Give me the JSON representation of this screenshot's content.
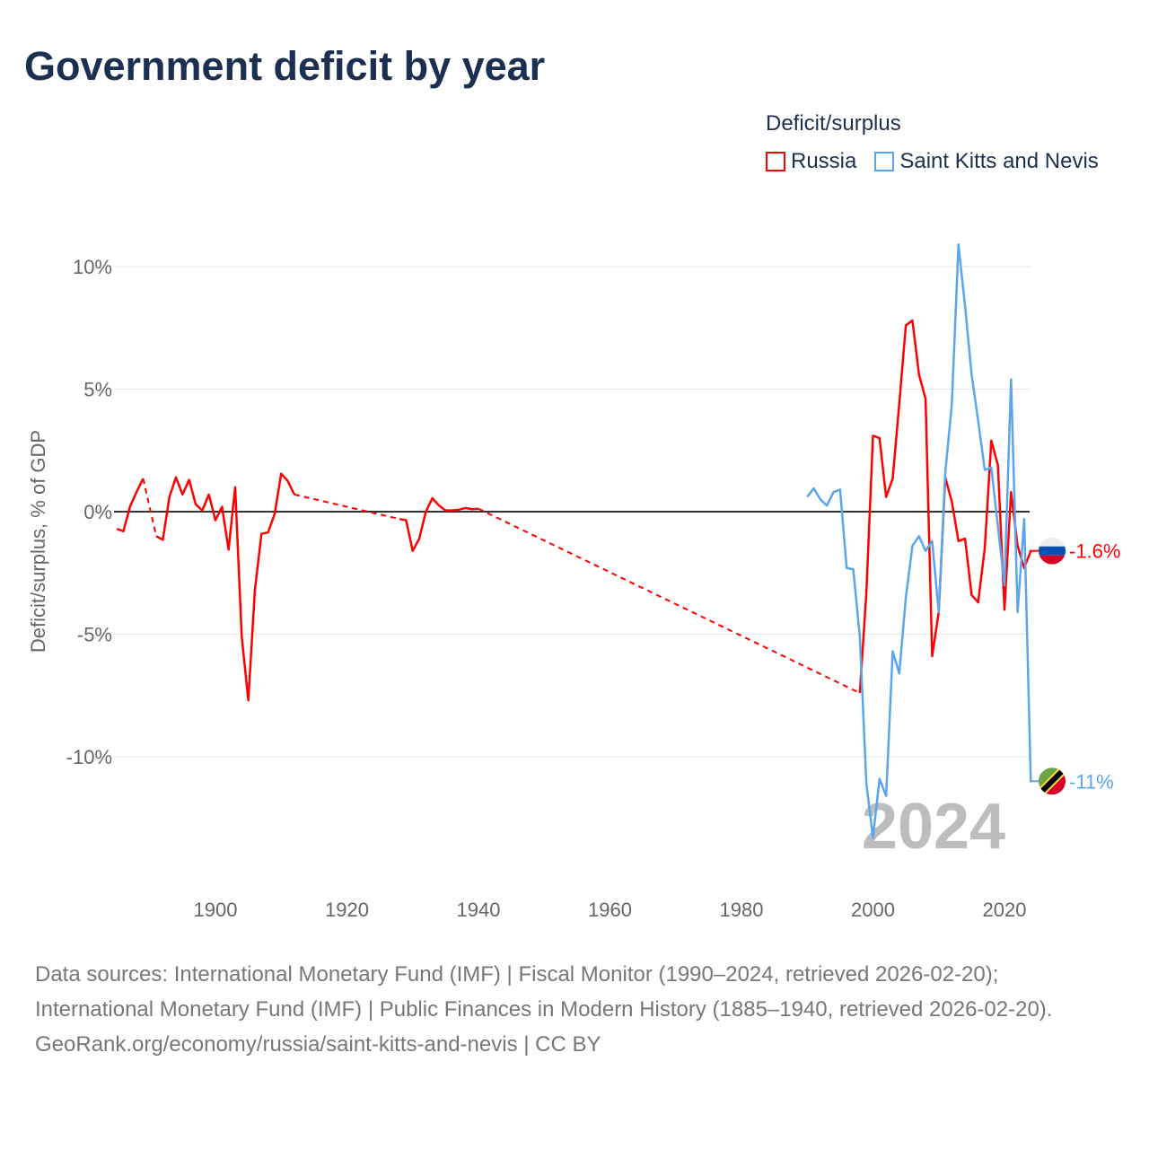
{
  "title": "Government deficit by year",
  "legend": {
    "title": "Deficit/surplus",
    "items": [
      {
        "name": "Russia",
        "color": "#ff0000"
      },
      {
        "name": "Saint Kitts and Nevis",
        "color": "#5aa6ec"
      }
    ]
  },
  "chart_data": {
    "type": "line",
    "title": "Government deficit by year",
    "xlabel": "",
    "ylabel": "Deficit/surplus, % of GDP",
    "xlim": [
      1885,
      2024
    ],
    "ylim": [
      -14,
      11
    ],
    "x_ticks": [
      1900,
      1920,
      1940,
      1960,
      1980,
      2000,
      2020
    ],
    "x_tick_labels": [
      "1900",
      "1920",
      "1940",
      "1960",
      "1980",
      "2000",
      "2020"
    ],
    "y_ticks": [
      10,
      5,
      0,
      -5,
      -10
    ],
    "y_tick_labels": [
      "10%",
      "5%",
      "0%",
      "-5%",
      "-10%"
    ],
    "grid": true,
    "year_watermark": "2024",
    "series": [
      {
        "name": "Russia",
        "color": "#ff0000",
        "end_label": "-1.6%",
        "x": [
          1885,
          1886,
          1887,
          1888,
          1889,
          1891,
          1892,
          1893,
          1894,
          1895,
          1896,
          1897,
          1898,
          1899,
          1900,
          1901,
          1902,
          1903,
          1904,
          1905,
          1906,
          1907,
          1908,
          1909,
          1910,
          1911,
          1912,
          1928,
          1929,
          1930,
          1931,
          1932,
          1933,
          1934,
          1935,
          1936,
          1937,
          1938,
          1939,
          1940,
          1998,
          1999,
          2000,
          2001,
          2002,
          2003,
          2004,
          2005,
          2006,
          2007,
          2008,
          2009,
          2010,
          2011,
          2012,
          2013,
          2014,
          2015,
          2016,
          2017,
          2018,
          2019,
          2020,
          2021,
          2022,
          2023,
          2024
        ],
        "y": [
          -0.7,
          -0.8,
          0.2,
          0.8,
          1.35,
          -1.0,
          -1.15,
          0.6,
          1.4,
          0.7,
          1.3,
          0.3,
          0.05,
          0.7,
          -0.35,
          0.2,
          -1.55,
          1.0,
          -5.1,
          -7.7,
          -3.2,
          -0.9,
          -0.85,
          -0.1,
          1.55,
          1.25,
          0.7,
          -0.3,
          -0.35,
          -1.6,
          -1.1,
          0.0,
          0.55,
          0.25,
          0.05,
          0.05,
          0.08,
          0.15,
          0.1,
          0.12,
          -7.4,
          -3.3,
          3.1,
          3.0,
          0.6,
          1.35,
          4.4,
          7.6,
          7.8,
          5.6,
          4.6,
          -5.9,
          -4.1,
          1.4,
          0.4,
          -1.2,
          -1.1,
          -3.4,
          -3.7,
          -1.5,
          2.9,
          1.9,
          -4.0,
          0.8,
          -1.4,
          -2.3,
          -1.6
        ]
      },
      {
        "name": "Saint Kitts and Nevis",
        "color": "#5aa6ec",
        "end_label": "-11%",
        "x": [
          1990,
          1991,
          1992,
          1993,
          1994,
          1995,
          1996,
          1997,
          1998,
          1999,
          2000,
          2001,
          2002,
          2003,
          2004,
          2005,
          2006,
          2007,
          2008,
          2009,
          2010,
          2011,
          2012,
          2013,
          2014,
          2015,
          2016,
          2017,
          2018,
          2019,
          2020,
          2021,
          2022,
          2023,
          2024
        ],
        "y": [
          0.6,
          0.95,
          0.5,
          0.25,
          0.8,
          0.9,
          -2.3,
          -2.35,
          -5.1,
          -11.1,
          -13.3,
          -10.9,
          -11.6,
          -5.7,
          -6.6,
          -3.5,
          -1.4,
          -1.0,
          -1.6,
          -1.2,
          -4.1,
          1.6,
          4.4,
          10.9,
          8.4,
          5.6,
          3.7,
          1.7,
          1.8,
          -0.6,
          -3.0,
          5.4,
          -4.1,
          -0.3,
          -11.0
        ]
      }
    ]
  },
  "footer": {
    "sources": "Data sources: International Monetary Fund (IMF) | Fiscal Monitor (1990–2024, retrieved 2026-02-20); International Monetary Fund (IMF) | Public Finances in Modern History (1885–1940, retrieved 2026-02-20).",
    "link": "GeoRank.org/economy/russia/saint-kitts-and-nevis | CC BY"
  }
}
